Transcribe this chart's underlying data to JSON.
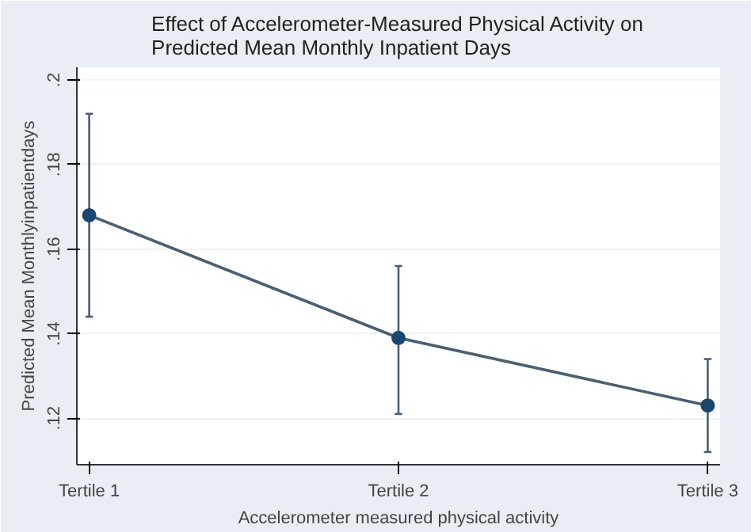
{
  "chart_data": {
    "type": "line",
    "title": "Effect of Accelerometer-Measured Physical Activity on\nPredicted Mean Monthly Inpatient Days",
    "xlabel": "Accelerometer measured physical activity",
    "ylabel": "Predicted Mean Monthlyinpatientdays",
    "categories": [
      "Tertile 1",
      "Tertile 2",
      "Tertile 3"
    ],
    "series": [
      {
        "color": "#1a476f",
        "values": [
          0.168,
          0.139,
          0.123
        ],
        "errors": [
          [
            0.144,
            0.192
          ],
          [
            0.121,
            0.156
          ],
          [
            0.112,
            0.134
          ]
        ]
      }
    ],
    "ylim": [
      0.109,
      0.203
    ],
    "yticks": [
      {
        "value": 0.12,
        "label": ".12"
      },
      {
        "value": 0.14,
        "label": ".14"
      },
      {
        "value": 0.16,
        "label": ".16"
      },
      {
        "value": 0.18,
        "label": ".18"
      },
      {
        "value": 0.2,
        "label": ".2"
      }
    ],
    "grid": "y",
    "marker": "circle",
    "line_style": "solid"
  }
}
